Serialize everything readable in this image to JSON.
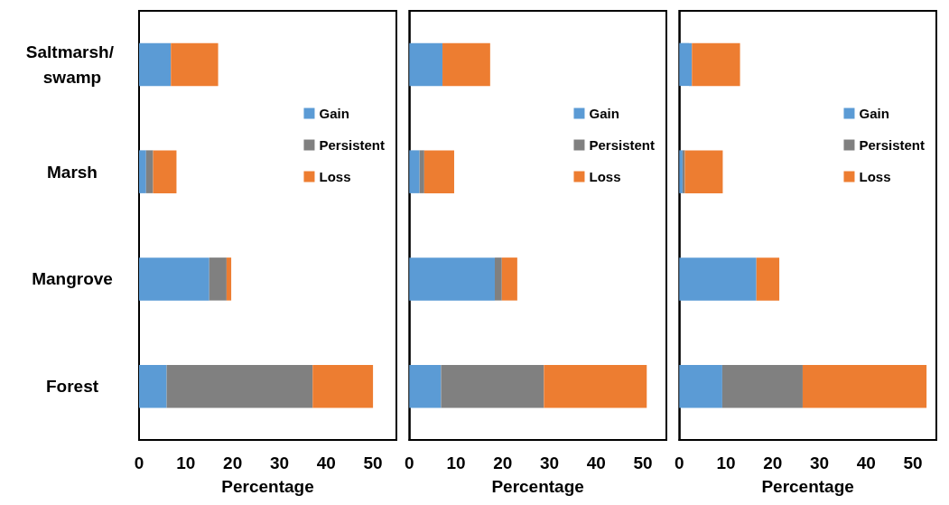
{
  "chart_data": [
    {
      "type": "bar",
      "orientation": "horizontal",
      "stacked": true,
      "categories": [
        "Saltmarsh/ swamp",
        "Marsh",
        "Mangrove",
        "Forest"
      ],
      "xlabel": "Percentage",
      "xlim": [
        0,
        55
      ],
      "xticks": [
        0,
        10,
        20,
        30,
        40,
        50
      ],
      "grid": false,
      "legend": "right",
      "series": [
        {
          "name": "Gain",
          "color": "#5b9bd5",
          "values": [
            6.8,
            1.5,
            15.0,
            5.9
          ]
        },
        {
          "name": "Persistent",
          "color": "#808080",
          "values": [
            0,
            1.5,
            3.7,
            31.2
          ]
        },
        {
          "name": "Loss",
          "color": "#ed7d31",
          "values": [
            10.1,
            5.0,
            1.0,
            12.9
          ]
        }
      ]
    },
    {
      "type": "bar",
      "orientation": "horizontal",
      "stacked": true,
      "categories": [
        "Saltmarsh/ swamp",
        "Marsh",
        "Mangrove",
        "Forest"
      ],
      "xlabel": "Percentage",
      "xlim": [
        0,
        55
      ],
      "xticks": [
        0,
        10,
        20,
        30,
        40,
        50
      ],
      "grid": false,
      "legend": "right",
      "tick_labels": "x",
      "series": [
        {
          "name": "Gain",
          "color": "#5b9bd5",
          "values": [
            7.1,
            2.2,
            18.3,
            6.8
          ]
        },
        {
          "name": "Persistent",
          "color": "#808080",
          "values": [
            0,
            1.0,
            1.5,
            22.0
          ]
        },
        {
          "name": "Loss",
          "color": "#ed7d31",
          "values": [
            10.2,
            6.4,
            3.3,
            22.0
          ]
        }
      ]
    },
    {
      "type": "bar",
      "orientation": "horizontal",
      "stacked": true,
      "categories": [
        "Saltmarsh/ swamp",
        "Marsh",
        "Mangrove",
        "Forest"
      ],
      "xlabel": "Percentage",
      "xlim": [
        0,
        55
      ],
      "xticks": [
        0,
        10,
        20,
        30,
        40,
        50
      ],
      "grid": false,
      "legend": "right",
      "tick_labels": "x",
      "series": [
        {
          "name": "Gain",
          "color": "#5b9bd5",
          "values": [
            2.7,
            0.7,
            16.5,
            9.2
          ]
        },
        {
          "name": "Persistent",
          "color": "#808080",
          "values": [
            0,
            0.5,
            0,
            17.2
          ]
        },
        {
          "name": "Loss",
          "color": "#ed7d31",
          "values": [
            10.3,
            8.1,
            4.9,
            26.5
          ]
        }
      ]
    }
  ]
}
